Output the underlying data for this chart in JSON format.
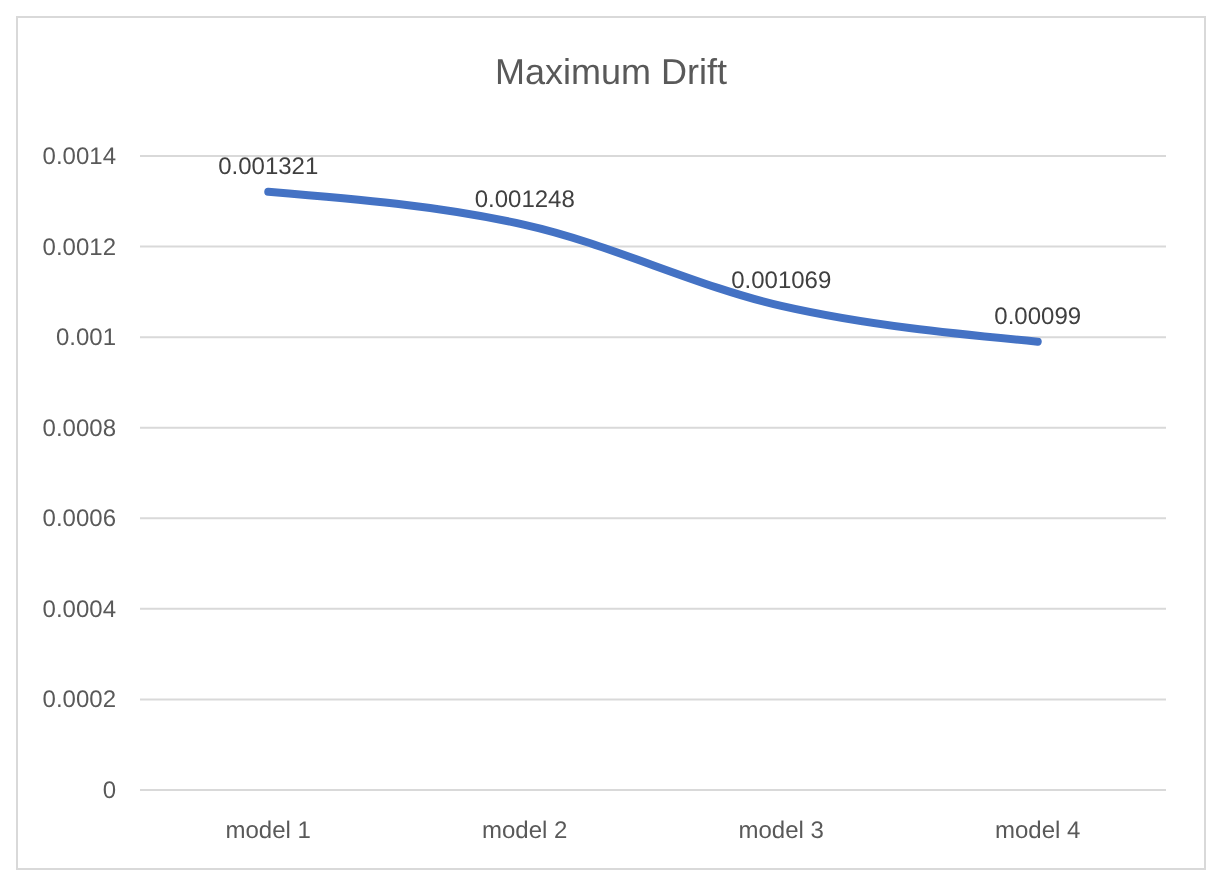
{
  "chart_data": {
    "type": "line",
    "title": "Maximum Drift",
    "categories": [
      "model 1",
      "model 2",
      "model 3",
      "model 4"
    ],
    "series": [
      {
        "color": "#4472c4",
        "values": [
          0.001321,
          0.001248,
          0.001069,
          0.00099
        ]
      }
    ],
    "ylim": [
      0,
      0.0014
    ],
    "yticks": [
      0,
      0.0002,
      0.0004,
      0.0006,
      0.0008,
      0.001,
      0.0012,
      0.0014
    ],
    "grid": "y",
    "data_labels": true,
    "marker": "none",
    "line_style": "solid"
  }
}
